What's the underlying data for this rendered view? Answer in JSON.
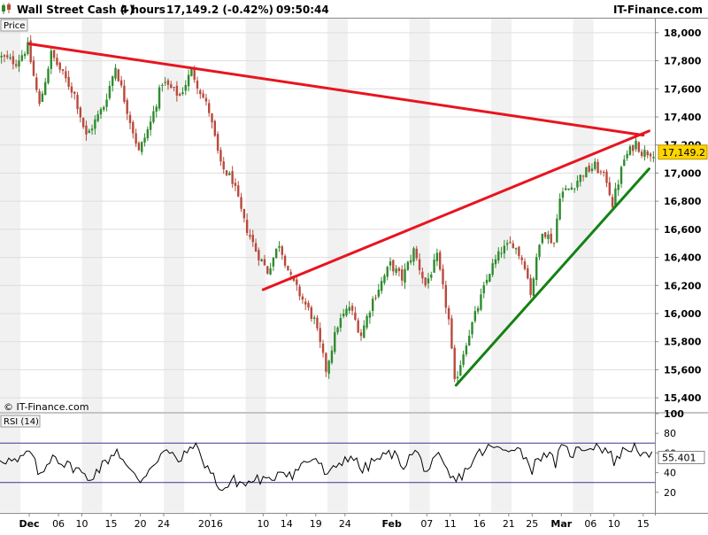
{
  "header": {
    "instrument": "Wall Street Cash (-)",
    "timeframe": "4 hours",
    "quote": "17,149.2 (-0.42%)",
    "time": "09:50:44",
    "brand": "IT-Finance.com"
  },
  "watermark": "© IT-Finance.com",
  "colors": {
    "up_candle": "#2e8b2e",
    "down_candle": "#b84a3c",
    "resistance_line": "#e8141e",
    "support_line": "#148214",
    "rsi_line": "#000000",
    "rsi_band": "#3a3a8c",
    "last_price_tag": "#ffd400"
  },
  "chart_data": [
    {
      "type": "candlestick",
      "panel_label": "Price",
      "last_price": 17149.2,
      "last_price_label": "17,149.2",
      "ylim": [
        15300,
        18100
      ],
      "y_ticks": [
        15400,
        15600,
        15800,
        16000,
        16200,
        16400,
        16600,
        16800,
        17000,
        17200,
        17400,
        17600,
        17800,
        18000
      ],
      "y_tick_labels": [
        "15,400",
        "15,600",
        "15,800",
        "16,000",
        "16,200",
        "16,400",
        "16,600",
        "16,800",
        "17,000",
        "17,200",
        "17,400",
        "17,600",
        "17,800",
        "18,000"
      ],
      "x_range": [
        "2015-11-26",
        "2016-03-17"
      ],
      "x_ticks": [
        {
          "date": "2015-12-01",
          "label": "Dec"
        },
        {
          "date": "2015-12-06",
          "label": "06"
        },
        {
          "date": "2015-12-10",
          "label": "10"
        },
        {
          "date": "2015-12-15",
          "label": "15"
        },
        {
          "date": "2015-12-20",
          "label": "20"
        },
        {
          "date": "2015-12-24",
          "label": "24"
        },
        {
          "date": "2016-01-01",
          "label": "2016"
        },
        {
          "date": "2016-01-10",
          "label": "10"
        },
        {
          "date": "2016-01-14",
          "label": "14"
        },
        {
          "date": "2016-01-19",
          "label": "19"
        },
        {
          "date": "2016-01-24",
          "label": "24"
        },
        {
          "date": "2016-02-01",
          "label": "Feb"
        },
        {
          "date": "2016-02-07",
          "label": "07"
        },
        {
          "date": "2016-02-11",
          "label": "11"
        },
        {
          "date": "2016-02-16",
          "label": "16"
        },
        {
          "date": "2016-02-21",
          "label": "21"
        },
        {
          "date": "2016-02-25",
          "label": "25"
        },
        {
          "date": "2016-03-01",
          "label": "Mar"
        },
        {
          "date": "2016-03-06",
          "label": "06"
        },
        {
          "date": "2016-03-10",
          "label": "10"
        },
        {
          "date": "2016-03-15",
          "label": "15"
        }
      ],
      "close_path": [
        {
          "date": "2015-11-26",
          "value": 17830
        },
        {
          "date": "2015-11-29",
          "value": 17790
        },
        {
          "date": "2015-12-01",
          "value": 17900
        },
        {
          "date": "2015-12-03",
          "value": 17480
        },
        {
          "date": "2015-12-05",
          "value": 17850
        },
        {
          "date": "2015-12-07",
          "value": 17700
        },
        {
          "date": "2015-12-09",
          "value": 17560
        },
        {
          "date": "2015-12-11",
          "value": 17260
        },
        {
          "date": "2015-12-14",
          "value": 17480
        },
        {
          "date": "2015-12-16",
          "value": 17760
        },
        {
          "date": "2015-12-18",
          "value": 17450
        },
        {
          "date": "2015-12-20",
          "value": 17150
        },
        {
          "date": "2015-12-22",
          "value": 17360
        },
        {
          "date": "2015-12-24",
          "value": 17650
        },
        {
          "date": "2015-12-27",
          "value": 17550
        },
        {
          "date": "2015-12-29",
          "value": 17730
        },
        {
          "date": "2016-01-01",
          "value": 17440
        },
        {
          "date": "2016-01-03",
          "value": 17050
        },
        {
          "date": "2016-01-05",
          "value": 16950
        },
        {
          "date": "2016-01-07",
          "value": 16650
        },
        {
          "date": "2016-01-09",
          "value": 16450
        },
        {
          "date": "2016-01-11",
          "value": 16300
        },
        {
          "date": "2016-01-13",
          "value": 16500
        },
        {
          "date": "2016-01-15",
          "value": 16250
        },
        {
          "date": "2016-01-17",
          "value": 16100
        },
        {
          "date": "2016-01-19",
          "value": 15950
        },
        {
          "date": "2016-01-21",
          "value": 15600
        },
        {
          "date": "2016-01-23",
          "value": 15920
        },
        {
          "date": "2016-01-25",
          "value": 16050
        },
        {
          "date": "2016-01-27",
          "value": 15850
        },
        {
          "date": "2016-01-29",
          "value": 16100
        },
        {
          "date": "2016-02-01",
          "value": 16350
        },
        {
          "date": "2016-02-03",
          "value": 16250
        },
        {
          "date": "2016-02-05",
          "value": 16450
        },
        {
          "date": "2016-02-07",
          "value": 16200
        },
        {
          "date": "2016-02-09",
          "value": 16400
        },
        {
          "date": "2016-02-11",
          "value": 15950
        },
        {
          "date": "2016-02-12",
          "value": 15500
        },
        {
          "date": "2016-02-14",
          "value": 15800
        },
        {
          "date": "2016-02-16",
          "value": 16050
        },
        {
          "date": "2016-02-18",
          "value": 16300
        },
        {
          "date": "2016-02-20",
          "value": 16450
        },
        {
          "date": "2016-02-22",
          "value": 16500
        },
        {
          "date": "2016-02-24",
          "value": 16350
        },
        {
          "date": "2016-02-25",
          "value": 16150
        },
        {
          "date": "2016-02-27",
          "value": 16600
        },
        {
          "date": "2016-02-29",
          "value": 16500
        },
        {
          "date": "2016-03-01",
          "value": 16850
        },
        {
          "date": "2016-03-03",
          "value": 16900
        },
        {
          "date": "2016-03-05",
          "value": 17000
        },
        {
          "date": "2016-03-07",
          "value": 17050
        },
        {
          "date": "2016-03-09",
          "value": 16950
        },
        {
          "date": "2016-03-10",
          "value": 16780
        },
        {
          "date": "2016-03-12",
          "value": 17100
        },
        {
          "date": "2016-03-14",
          "value": 17220
        },
        {
          "date": "2016-03-15",
          "value": 17149.2
        }
      ],
      "trendlines": [
        {
          "color_key": "resistance_line",
          "from": {
            "date": "2015-12-01",
            "value": 17920
          },
          "to": {
            "date": "2016-03-15",
            "value": 17270
          }
        },
        {
          "color_key": "resistance_line",
          "from": {
            "date": "2016-01-10",
            "value": 16170
          },
          "to": {
            "date": "2016-03-16",
            "value": 17300
          }
        },
        {
          "color_key": "support_line",
          "from": {
            "date": "2016-02-12",
            "value": 15490
          },
          "to": {
            "date": "2016-03-16",
            "value": 17030
          }
        }
      ]
    },
    {
      "type": "line",
      "panel_label": "RSI (14)",
      "last_value": 55.401,
      "last_value_label": "55.401",
      "ylim": [
        0,
        100
      ],
      "bands": [
        30,
        70
      ],
      "y_ticks": [
        20,
        40,
        60,
        80,
        100
      ],
      "y_tick_labels": [
        "20",
        "40",
        "60",
        "80",
        "100"
      ],
      "path": [
        {
          "date": "2015-11-26",
          "value": 55
        },
        {
          "date": "2015-11-29",
          "value": 50
        },
        {
          "date": "2015-12-01",
          "value": 62
        },
        {
          "date": "2015-12-03",
          "value": 35
        },
        {
          "date": "2015-12-05",
          "value": 60
        },
        {
          "date": "2015-12-07",
          "value": 48
        },
        {
          "date": "2015-12-09",
          "value": 45
        },
        {
          "date": "2015-12-11",
          "value": 33
        },
        {
          "date": "2015-12-14",
          "value": 50
        },
        {
          "date": "2015-12-16",
          "value": 64
        },
        {
          "date": "2015-12-18",
          "value": 42
        },
        {
          "date": "2015-12-20",
          "value": 32
        },
        {
          "date": "2015-12-22",
          "value": 48
        },
        {
          "date": "2015-12-24",
          "value": 62
        },
        {
          "date": "2015-12-27",
          "value": 52
        },
        {
          "date": "2015-12-29",
          "value": 70
        },
        {
          "date": "2016-01-01",
          "value": 40
        },
        {
          "date": "2016-01-03",
          "value": 22
        },
        {
          "date": "2016-01-05",
          "value": 32
        },
        {
          "date": "2016-01-07",
          "value": 28
        },
        {
          "date": "2016-01-09",
          "value": 34
        },
        {
          "date": "2016-01-11",
          "value": 30
        },
        {
          "date": "2016-01-13",
          "value": 44
        },
        {
          "date": "2016-01-15",
          "value": 38
        },
        {
          "date": "2016-01-17",
          "value": 50
        },
        {
          "date": "2016-01-19",
          "value": 55
        },
        {
          "date": "2016-01-21",
          "value": 35
        },
        {
          "date": "2016-01-23",
          "value": 50
        },
        {
          "date": "2016-01-25",
          "value": 58
        },
        {
          "date": "2016-01-27",
          "value": 42
        },
        {
          "date": "2016-01-29",
          "value": 52
        },
        {
          "date": "2016-02-01",
          "value": 60
        },
        {
          "date": "2016-02-03",
          "value": 48
        },
        {
          "date": "2016-02-05",
          "value": 62
        },
        {
          "date": "2016-02-07",
          "value": 42
        },
        {
          "date": "2016-02-09",
          "value": 55
        },
        {
          "date": "2016-02-11",
          "value": 35
        },
        {
          "date": "2016-02-12",
          "value": 31
        },
        {
          "date": "2016-02-14",
          "value": 45
        },
        {
          "date": "2016-02-16",
          "value": 60
        },
        {
          "date": "2016-02-18",
          "value": 66
        },
        {
          "date": "2016-02-20",
          "value": 62
        },
        {
          "date": "2016-02-22",
          "value": 68
        },
        {
          "date": "2016-02-24",
          "value": 55
        },
        {
          "date": "2016-02-25",
          "value": 44
        },
        {
          "date": "2016-02-27",
          "value": 62
        },
        {
          "date": "2016-02-29",
          "value": 50
        },
        {
          "date": "2016-03-01",
          "value": 64
        },
        {
          "date": "2016-03-03",
          "value": 60
        },
        {
          "date": "2016-03-05",
          "value": 66
        },
        {
          "date": "2016-03-07",
          "value": 68
        },
        {
          "date": "2016-03-09",
          "value": 62
        },
        {
          "date": "2016-03-10",
          "value": 52
        },
        {
          "date": "2016-03-12",
          "value": 64
        },
        {
          "date": "2016-03-14",
          "value": 67
        },
        {
          "date": "2016-03-15",
          "value": 55.401
        }
      ]
    }
  ]
}
